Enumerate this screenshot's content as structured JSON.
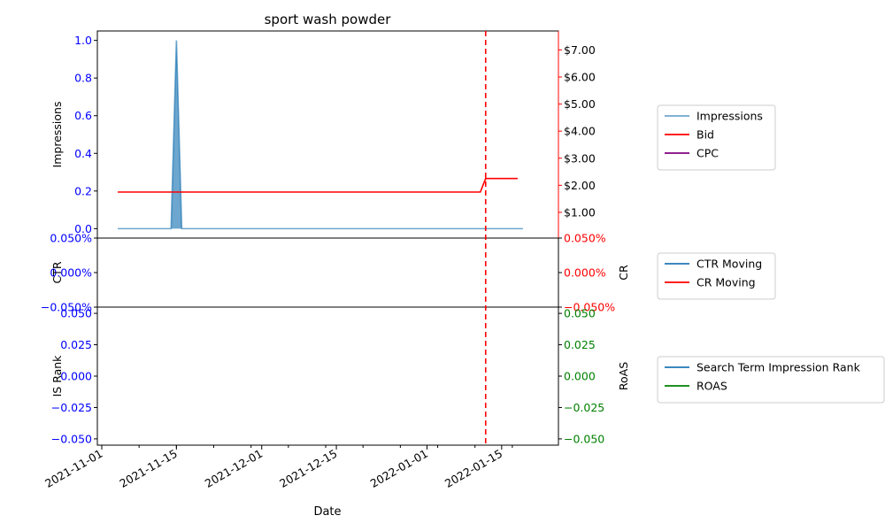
{
  "chart_data": {
    "type": "line",
    "title": "sport wash powder",
    "xlabel": "Date",
    "x_axis": {
      "ticks": [
        "2021-11-01",
        "2021-11-15",
        "2021-12-01",
        "2021-12-15",
        "2022-01-01",
        "2022-01-15"
      ],
      "range": [
        "2021-11-01",
        "2022-01-22"
      ]
    },
    "marker_date": "2022-01-12",
    "colors": {
      "impressions": "#1f77b4",
      "bid": "#ff0000",
      "cpc": "#800080",
      "ctr": "#1f77b4",
      "cr": "#ff0000",
      "is_rank": "#1f77b4",
      "roas": "#008000",
      "left_tick": "#0000ff",
      "cr_tick": "#ff0000",
      "roas_tick": "#008000",
      "marker": "#ff0000"
    },
    "panels": [
      {
        "name": "impressions-bid",
        "ylabel_left": "Impressions",
        "ylabel_right": "",
        "ylim_left": [
          -0.05,
          1.05
        ],
        "yticks_left": [
          "0.0",
          "0.2",
          "0.4",
          "0.6",
          "0.8",
          "1.0"
        ],
        "ylim_right": [
          0.05,
          7.7
        ],
        "yticks_right": [
          "$1.00",
          "$2.00",
          "$3.00",
          "$4.00",
          "$5.00",
          "$6.00",
          "$7.00"
        ],
        "series": [
          {
            "name": "Impressions",
            "axis": "left",
            "fill": true,
            "x": [
              "2021-11-04",
              "2021-11-14",
              "2021-11-15",
              "2021-11-16",
              "2022-01-19"
            ],
            "y": [
              0,
              0,
              1,
              0,
              0
            ]
          },
          {
            "name": "Bid",
            "axis": "right",
            "x": [
              "2021-11-04",
              "2022-01-11",
              "2022-01-12",
              "2022-01-18"
            ],
            "y": [
              1.75,
              1.75,
              2.25,
              2.25
            ]
          },
          {
            "name": "CPC",
            "axis": "right",
            "x": [],
            "y": []
          }
        ]
      },
      {
        "name": "ctr-cr",
        "ylabel_left": "CTR",
        "ylabel_right": "CR",
        "ylim_left": [
          -0.05,
          0.05
        ],
        "yticks_left": [
          "−0.050%",
          "0.000%",
          "0.050%"
        ],
        "ylim_right": [
          -0.05,
          0.05
        ],
        "yticks_right": [
          "−0.050%",
          "0.000%",
          "0.050%"
        ],
        "series": [
          {
            "name": "CTR Moving",
            "axis": "left",
            "x": [],
            "y": []
          },
          {
            "name": "CR Moving",
            "axis": "right",
            "x": [],
            "y": []
          }
        ]
      },
      {
        "name": "isrank-roas",
        "ylabel_left": "IS Rank",
        "ylabel_right": "RoAS",
        "ylim_left": [
          -0.055,
          0.055
        ],
        "yticks_left": [
          "−0.050",
          "−0.025",
          "0.000",
          "0.025",
          "0.050"
        ],
        "ylim_right": [
          -0.055,
          0.055
        ],
        "yticks_right": [
          "−0.050",
          "−0.025",
          "0.000",
          "0.025",
          "0.050"
        ],
        "series": [
          {
            "name": "Search Term Impression Rank",
            "axis": "left",
            "x": [],
            "y": []
          },
          {
            "name": "ROAS",
            "axis": "right",
            "x": [],
            "y": []
          }
        ]
      }
    ],
    "legends": [
      {
        "panel": "impressions-bid",
        "entries": [
          "Impressions",
          "Bid",
          "CPC"
        ],
        "placement": "right"
      },
      {
        "panel": "ctr-cr",
        "entries": [
          "CTR Moving",
          "CR Moving"
        ],
        "placement": "right"
      },
      {
        "panel": "isrank-roas",
        "entries": [
          "Search Term Impression Rank",
          "ROAS"
        ],
        "placement": "right"
      }
    ]
  }
}
